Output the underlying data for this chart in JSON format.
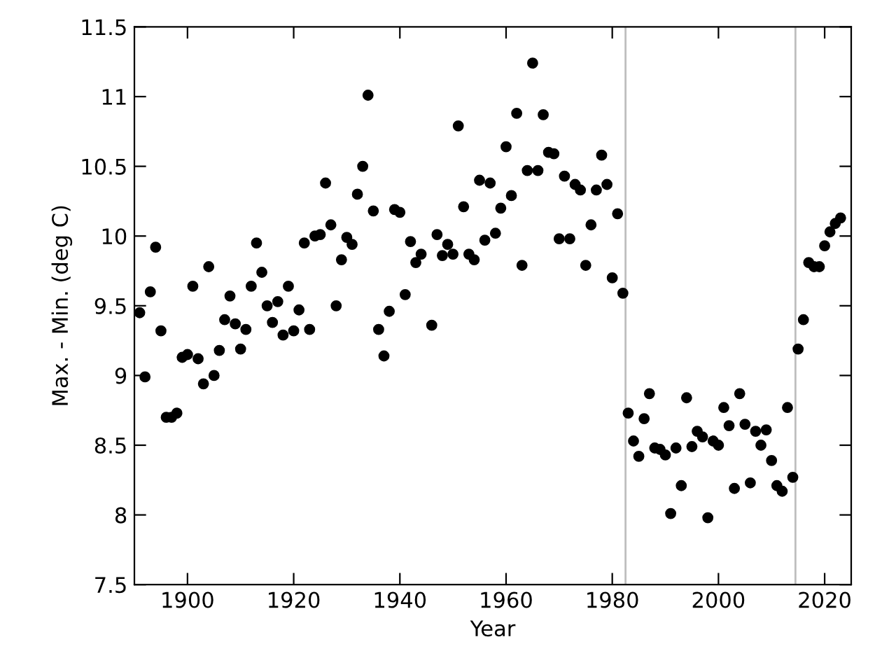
{
  "chart_data": {
    "type": "scatter",
    "xlabel": "Year",
    "ylabel": "Max. - Min. (deg C)",
    "x": [
      1891,
      1892,
      1893,
      1894,
      1895,
      1896,
      1897,
      1898,
      1899,
      1900,
      1901,
      1902,
      1903,
      1904,
      1905,
      1906,
      1907,
      1908,
      1909,
      1910,
      1911,
      1912,
      1913,
      1914,
      1915,
      1916,
      1917,
      1918,
      1919,
      1920,
      1921,
      1922,
      1923,
      1924,
      1925,
      1926,
      1927,
      1928,
      1929,
      1930,
      1931,
      1932,
      1933,
      1934,
      1935,
      1936,
      1937,
      1938,
      1939,
      1940,
      1941,
      1942,
      1943,
      1944,
      1946,
      1947,
      1948,
      1949,
      1950,
      1951,
      1952,
      1953,
      1954,
      1955,
      1956,
      1957,
      1958,
      1959,
      1960,
      1961,
      1962,
      1963,
      1964,
      1965,
      1966,
      1967,
      1968,
      1969,
      1970,
      1971,
      1972,
      1973,
      1974,
      1975,
      1976,
      1977,
      1978,
      1979,
      1980,
      1981,
      1982,
      1983,
      1984,
      1985,
      1986,
      1987,
      1988,
      1989,
      1990,
      1991,
      1992,
      1993,
      1994,
      1995,
      1996,
      1997,
      1998,
      1999,
      2000,
      2001,
      2002,
      2003,
      2004,
      2005,
      2006,
      2007,
      2008,
      2009,
      2010,
      2011,
      2012,
      2013,
      2014,
      2015,
      2016,
      2017,
      2018,
      2019,
      2020,
      2021,
      2022,
      2023
    ],
    "series": [
      {
        "color": "#000000",
        "values": [
          9.45,
          8.99,
          9.6,
          9.92,
          9.32,
          8.7,
          8.7,
          8.73,
          9.13,
          9.15,
          9.64,
          9.12,
          8.94,
          9.78,
          9.0,
          9.18,
          9.4,
          9.57,
          9.37,
          9.19,
          9.33,
          9.64,
          9.95,
          9.74,
          9.5,
          9.38,
          9.53,
          9.29,
          9.64,
          9.32,
          9.47,
          9.95,
          9.33,
          10.0,
          10.01,
          10.38,
          10.08,
          9.5,
          9.83,
          9.99,
          9.94,
          10.3,
          10.5,
          11.01,
          10.18,
          9.33,
          9.14,
          9.46,
          10.19,
          10.17,
          9.58,
          9.96,
          9.81,
          9.87,
          9.36,
          10.01,
          9.86,
          9.94,
          9.87,
          10.79,
          10.21,
          9.87,
          9.83,
          10.4,
          9.97,
          10.38,
          10.02,
          10.2,
          10.64,
          10.29,
          10.88,
          9.79,
          10.47,
          11.24,
          10.47,
          10.87,
          10.6,
          10.59,
          9.98,
          10.43,
          9.98,
          10.37,
          10.33,
          9.79,
          10.08,
          10.33,
          10.58,
          10.37,
          9.7,
          10.16,
          9.59,
          8.73,
          8.53,
          8.42,
          8.69,
          8.87,
          8.48,
          8.47,
          8.43,
          8.01,
          8.48,
          8.21,
          8.84,
          8.49,
          8.6,
          8.56,
          7.98,
          8.53,
          8.5,
          8.77,
          8.64,
          8.19,
          8.87,
          8.65,
          8.23,
          8.6,
          8.5,
          8.61,
          8.39,
          8.21,
          8.17,
          8.77,
          8.27,
          9.19,
          9.4,
          9.81,
          9.78,
          9.78,
          9.93,
          10.03,
          10.09,
          10.13
        ]
      }
    ],
    "marker": "circle",
    "xlim": [
      1890,
      2025
    ],
    "xticks": [
      1900,
      1920,
      1940,
      1960,
      1980,
      2000,
      2020
    ],
    "ylim": [
      7.5,
      11.5
    ],
    "yticks": [
      7.5,
      8,
      8.5,
      9,
      9.5,
      10,
      10.5,
      11,
      11.5
    ],
    "ref_lines": [
      {
        "axis": "x",
        "value": 1982.5,
        "color": "#bebebe"
      },
      {
        "axis": "x",
        "value": 2014.5,
        "color": "#bebebe"
      }
    ],
    "grid": false
  }
}
